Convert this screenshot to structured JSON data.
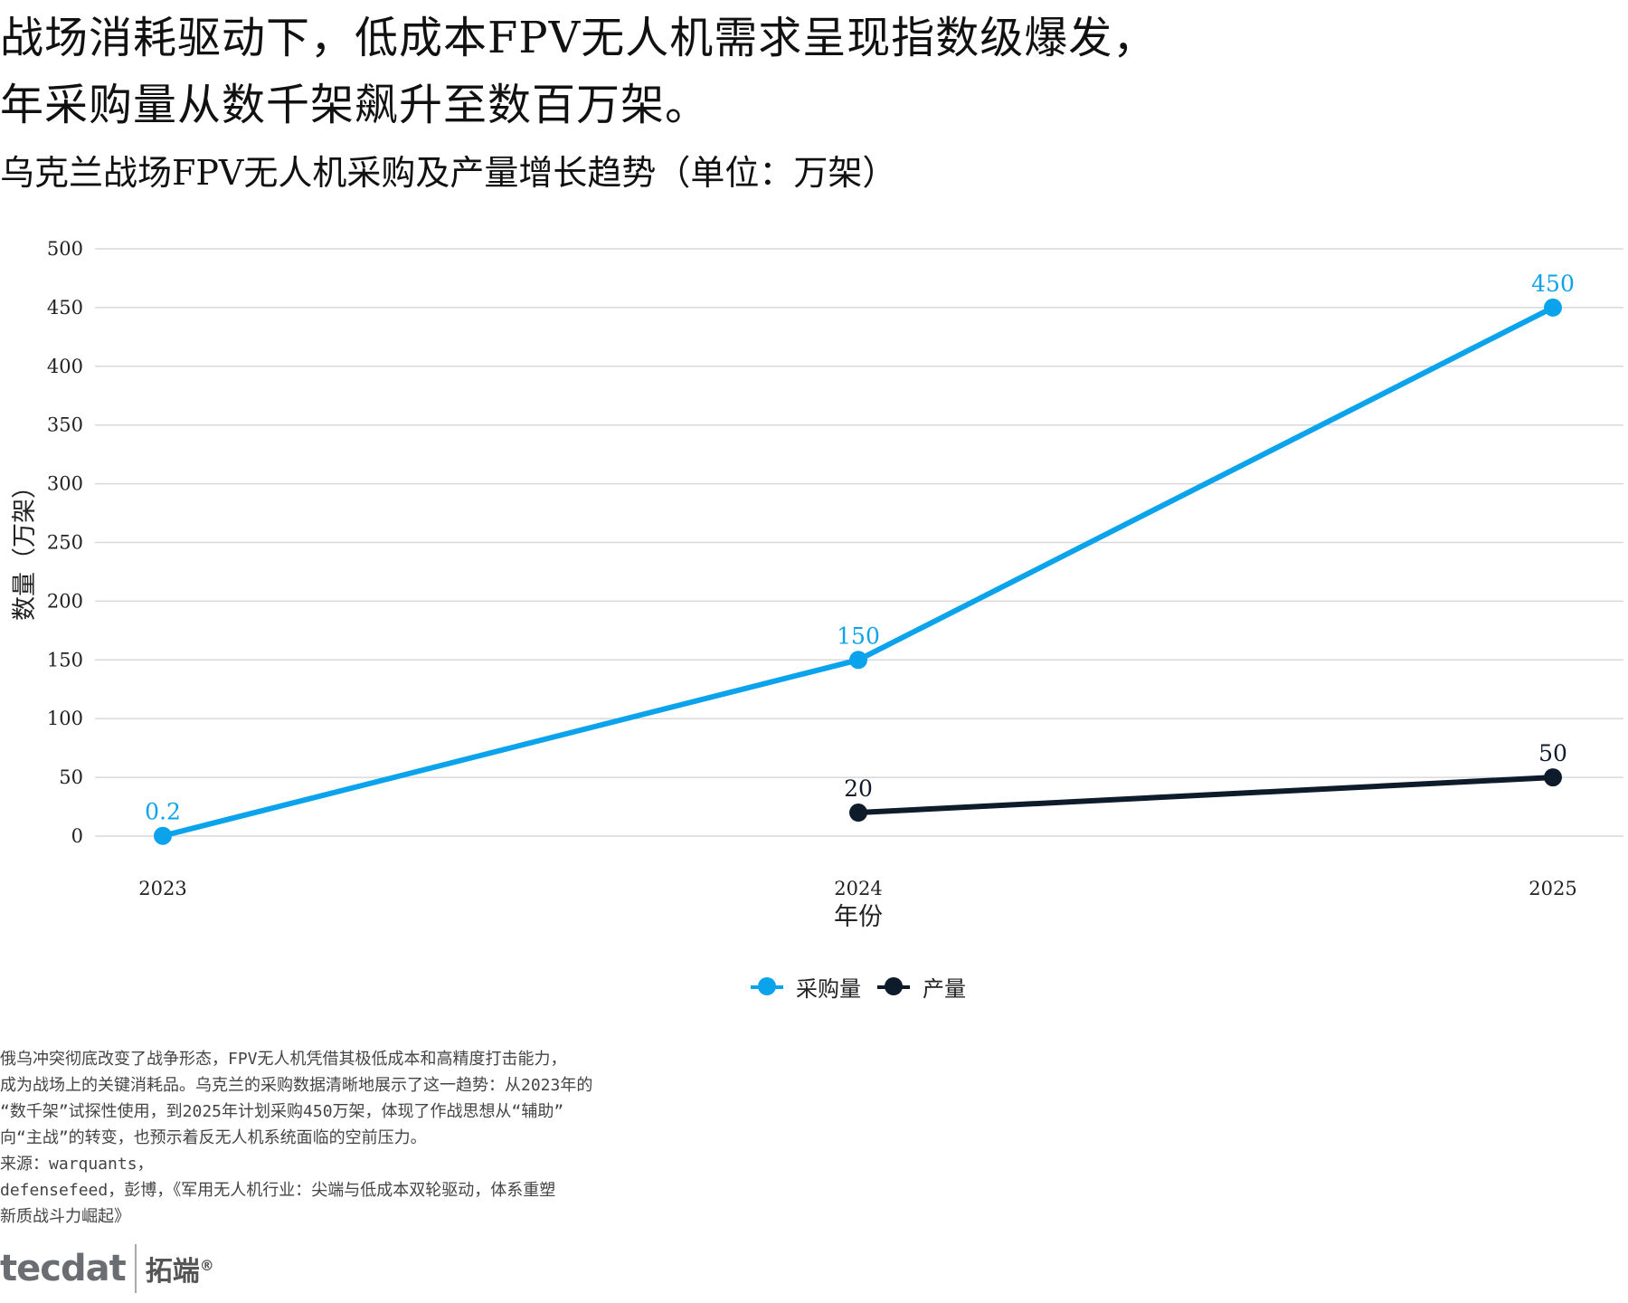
{
  "headline": {
    "line1": "战场消耗驱动下，低成本FPV无人机需求呈现指数级爆发，",
    "line2": "年采购量从数千架飙升至数百万架。"
  },
  "colors": {
    "procurement": "#0aa3ec",
    "production": "#0d1b2a",
    "grid": "#d9d9d9"
  },
  "chart_data": {
    "type": "line",
    "title": "乌克兰战场FPV无人机采购及产量增长趋势（单位：万架）",
    "xlabel": "年份",
    "ylabel": "数量（万架）",
    "categories": [
      "2023",
      "2024",
      "2025"
    ],
    "ylim": [
      0,
      500
    ],
    "yticks": [
      0,
      50,
      100,
      150,
      200,
      250,
      300,
      350,
      400,
      450,
      500
    ],
    "grid": true,
    "legend_position": "bottom",
    "series": [
      {
        "name": "采购量",
        "color": "#0aa3ec",
        "values": [
          0.2,
          150,
          450
        ],
        "labels": [
          "0.2",
          "150",
          "450"
        ]
      },
      {
        "name": "产量",
        "color": "#0d1b2a",
        "values": [
          null,
          20,
          50
        ],
        "labels": [
          null,
          "20",
          "50"
        ]
      }
    ]
  },
  "notes": [
    "俄乌冲突彻底改变了战争形态，FPV无人机凭借其极低成本和高精度打击能力，",
    "成为战场上的关键消耗品。乌克兰的采购数据清晰地展示了这一趋势：从2023年的",
    "“数千架”试探性使用，到2025年计划采购450万架，体现了作战思想从“辅助”",
    "向“主战”的转变，也预示着反无人机系统面临的空前压力。",
    "来源：warquants，",
    "defensefeed，彭博，《军用无人机行业：尖端与低成本双轮驱动，体系重塑",
    "新质战斗力崛起》"
  ],
  "logo": {
    "en": "tecdat",
    "cn": "拓端",
    "reg": "®"
  }
}
